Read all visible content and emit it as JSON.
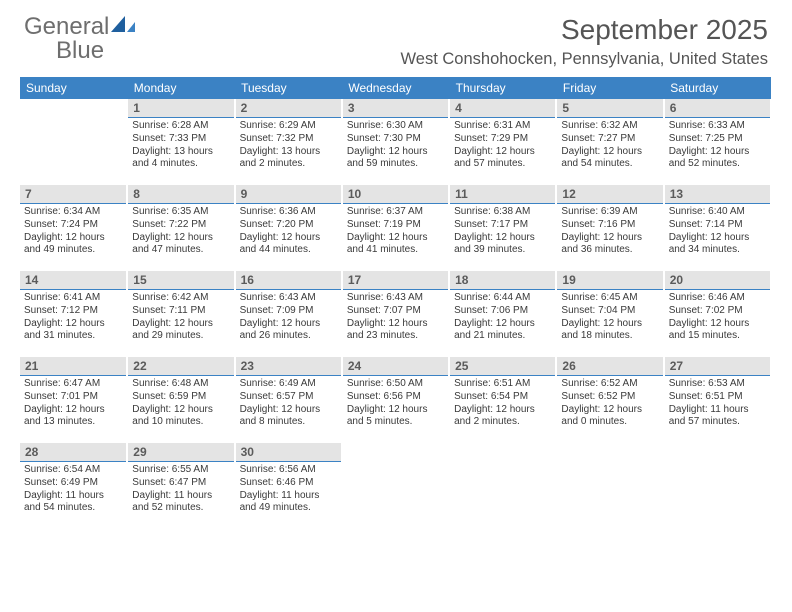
{
  "logo": {
    "text1": "General",
    "text2": "Blue"
  },
  "title": "September 2025",
  "location": "West Conshohocken, Pennsylvania, United States",
  "colors": {
    "header_bg": "#3b82c4",
    "header_text": "#ffffff",
    "daybar_bg": "#e4e4e4",
    "daybar_text": "#5b5b5b",
    "daybar_border": "#3b82c4",
    "body_text": "#3a3a3a",
    "title_text": "#555555",
    "logo_gray": "#6e6e6e",
    "logo_blue": "#3b82c4",
    "page_bg": "#ffffff"
  },
  "day_names": [
    "Sunday",
    "Monday",
    "Tuesday",
    "Wednesday",
    "Thursday",
    "Friday",
    "Saturday"
  ],
  "weeks": [
    [
      null,
      {
        "n": "1",
        "sunrise": "6:28 AM",
        "sunset": "7:33 PM",
        "daylight": "13 hours and 4 minutes."
      },
      {
        "n": "2",
        "sunrise": "6:29 AM",
        "sunset": "7:32 PM",
        "daylight": "13 hours and 2 minutes."
      },
      {
        "n": "3",
        "sunrise": "6:30 AM",
        "sunset": "7:30 PM",
        "daylight": "12 hours and 59 minutes."
      },
      {
        "n": "4",
        "sunrise": "6:31 AM",
        "sunset": "7:29 PM",
        "daylight": "12 hours and 57 minutes."
      },
      {
        "n": "5",
        "sunrise": "6:32 AM",
        "sunset": "7:27 PM",
        "daylight": "12 hours and 54 minutes."
      },
      {
        "n": "6",
        "sunrise": "6:33 AM",
        "sunset": "7:25 PM",
        "daylight": "12 hours and 52 minutes."
      }
    ],
    [
      {
        "n": "7",
        "sunrise": "6:34 AM",
        "sunset": "7:24 PM",
        "daylight": "12 hours and 49 minutes."
      },
      {
        "n": "8",
        "sunrise": "6:35 AM",
        "sunset": "7:22 PM",
        "daylight": "12 hours and 47 minutes."
      },
      {
        "n": "9",
        "sunrise": "6:36 AM",
        "sunset": "7:20 PM",
        "daylight": "12 hours and 44 minutes."
      },
      {
        "n": "10",
        "sunrise": "6:37 AM",
        "sunset": "7:19 PM",
        "daylight": "12 hours and 41 minutes."
      },
      {
        "n": "11",
        "sunrise": "6:38 AM",
        "sunset": "7:17 PM",
        "daylight": "12 hours and 39 minutes."
      },
      {
        "n": "12",
        "sunrise": "6:39 AM",
        "sunset": "7:16 PM",
        "daylight": "12 hours and 36 minutes."
      },
      {
        "n": "13",
        "sunrise": "6:40 AM",
        "sunset": "7:14 PM",
        "daylight": "12 hours and 34 minutes."
      }
    ],
    [
      {
        "n": "14",
        "sunrise": "6:41 AM",
        "sunset": "7:12 PM",
        "daylight": "12 hours and 31 minutes."
      },
      {
        "n": "15",
        "sunrise": "6:42 AM",
        "sunset": "7:11 PM",
        "daylight": "12 hours and 29 minutes."
      },
      {
        "n": "16",
        "sunrise": "6:43 AM",
        "sunset": "7:09 PM",
        "daylight": "12 hours and 26 minutes."
      },
      {
        "n": "17",
        "sunrise": "6:43 AM",
        "sunset": "7:07 PM",
        "daylight": "12 hours and 23 minutes."
      },
      {
        "n": "18",
        "sunrise": "6:44 AM",
        "sunset": "7:06 PM",
        "daylight": "12 hours and 21 minutes."
      },
      {
        "n": "19",
        "sunrise": "6:45 AM",
        "sunset": "7:04 PM",
        "daylight": "12 hours and 18 minutes."
      },
      {
        "n": "20",
        "sunrise": "6:46 AM",
        "sunset": "7:02 PM",
        "daylight": "12 hours and 15 minutes."
      }
    ],
    [
      {
        "n": "21",
        "sunrise": "6:47 AM",
        "sunset": "7:01 PM",
        "daylight": "12 hours and 13 minutes."
      },
      {
        "n": "22",
        "sunrise": "6:48 AM",
        "sunset": "6:59 PM",
        "daylight": "12 hours and 10 minutes."
      },
      {
        "n": "23",
        "sunrise": "6:49 AM",
        "sunset": "6:57 PM",
        "daylight": "12 hours and 8 minutes."
      },
      {
        "n": "24",
        "sunrise": "6:50 AM",
        "sunset": "6:56 PM",
        "daylight": "12 hours and 5 minutes."
      },
      {
        "n": "25",
        "sunrise": "6:51 AM",
        "sunset": "6:54 PM",
        "daylight": "12 hours and 2 minutes."
      },
      {
        "n": "26",
        "sunrise": "6:52 AM",
        "sunset": "6:52 PM",
        "daylight": "12 hours and 0 minutes."
      },
      {
        "n": "27",
        "sunrise": "6:53 AM",
        "sunset": "6:51 PM",
        "daylight": "11 hours and 57 minutes."
      }
    ],
    [
      {
        "n": "28",
        "sunrise": "6:54 AM",
        "sunset": "6:49 PM",
        "daylight": "11 hours and 54 minutes."
      },
      {
        "n": "29",
        "sunrise": "6:55 AM",
        "sunset": "6:47 PM",
        "daylight": "11 hours and 52 minutes."
      },
      {
        "n": "30",
        "sunrise": "6:56 AM",
        "sunset": "6:46 PM",
        "daylight": "11 hours and 49 minutes."
      },
      null,
      null,
      null,
      null
    ]
  ],
  "labels": {
    "sunrise": "Sunrise:",
    "sunset": "Sunset:",
    "daylight": "Daylight:"
  }
}
